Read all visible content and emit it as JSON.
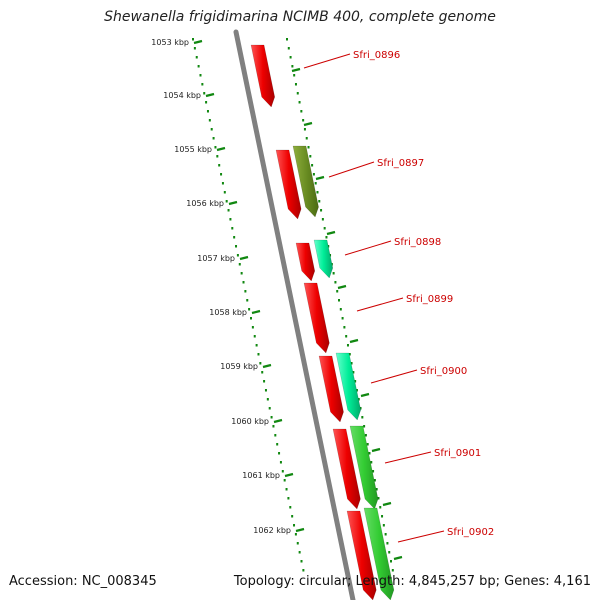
{
  "title": "Shewanella frigidimarina NCIMB 400, complete genome",
  "footer": {
    "accession": "Accession: NC_008345",
    "summary": "Topology: circular; Length: 4,845,257 bp; Genes: 4,161"
  },
  "scale": {
    "ticks": [
      "1053 kbp",
      "1054 kbp",
      "1055 kbp",
      "1056 kbp",
      "1057 kbp",
      "1058 kbp",
      "1059 kbp",
      "1060 kbp",
      "1061 kbp",
      "1062 kbp"
    ]
  },
  "genes": [
    "Sfri_0896",
    "Sfri_0897",
    "Sfri_0898",
    "Sfri_0899",
    "Sfri_0900",
    "Sfri_0901",
    "Sfri_0902"
  ],
  "colors": {
    "cds": "#ee0000",
    "olive": "#6b8e23",
    "aqua": "#00ee99",
    "green": "#33cc33",
    "backbone": "#808080",
    "tick": "#118811",
    "label": "#cc0000"
  }
}
